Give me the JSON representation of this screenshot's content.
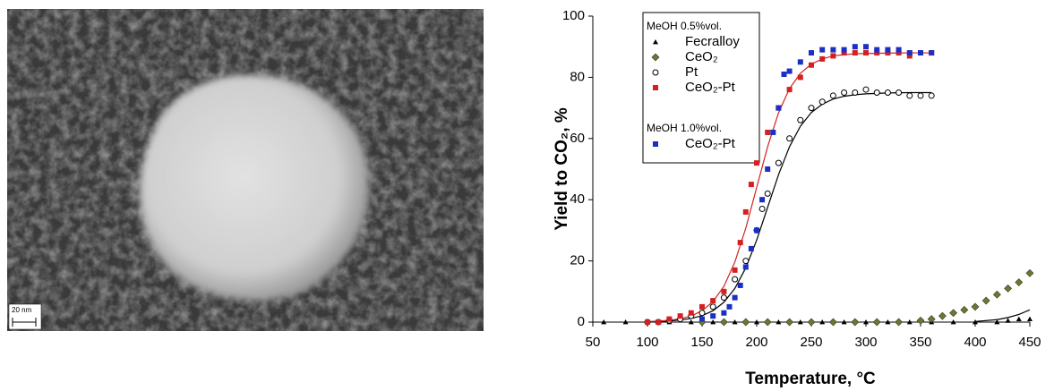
{
  "image": {
    "scale_bar": "20 nm"
  },
  "chart_data": {
    "type": "scatter",
    "xlabel": "Temperature, °C",
    "ylabel": "Yield to CO₂, %",
    "xlim": [
      50,
      450
    ],
    "ylim": [
      0,
      100
    ],
    "xticks": [
      50,
      100,
      150,
      200,
      250,
      300,
      350,
      400,
      450
    ],
    "yticks": [
      0,
      20,
      40,
      60,
      80,
      100
    ],
    "groups": [
      {
        "title": "MeOH 0.5%vol.",
        "series": [
          {
            "name": "Fecralloy",
            "color": "#000000",
            "marker": "triangle",
            "x": [
              60,
              80,
              100,
              120,
              140,
              160,
              180,
              200,
              220,
              240,
              260,
              280,
              300,
              320,
              340,
              360,
              380,
              400,
              420,
              430,
              440,
              450
            ],
            "values": [
              0,
              0,
              0,
              0,
              0,
              0,
              0,
              0,
              0,
              0,
              0,
              0,
              0,
              0,
              0,
              0,
              0,
              0,
              0,
              0.5,
              1,
              1
            ]
          },
          {
            "name": "CeO₂",
            "color": "#6b7a2a",
            "marker": "diamond",
            "x": [
              150,
              170,
              190,
              210,
              230,
              250,
              270,
              290,
              310,
              330,
              350,
              360,
              370,
              380,
              390,
              400,
              410,
              420,
              430,
              440,
              450
            ],
            "values": [
              0,
              0,
              0,
              0,
              0,
              0,
              0,
              0,
              0,
              0,
              0.5,
              1,
              2,
              3,
              4,
              5,
              7,
              9,
              11,
              13,
              16
            ]
          },
          {
            "name": "Pt",
            "color": "#000000",
            "marker": "circle",
            "x": [
              100,
              110,
              120,
              130,
              140,
              150,
              160,
              170,
              180,
              190,
              200,
              205,
              210,
              220,
              230,
              240,
              250,
              260,
              270,
              280,
              290,
              300,
              310,
              320,
              330,
              340,
              350,
              360
            ],
            "values": [
              0,
              0,
              0.5,
              1,
              2,
              3,
              5,
              8,
              14,
              20,
              30,
              37,
              42,
              52,
              60,
              66,
              70,
              72,
              74,
              75,
              75,
              76,
              75,
              75,
              75,
              74,
              74,
              74
            ]
          },
          {
            "name": "CeO₂-Pt",
            "color": "#d42020",
            "marker": "square",
            "x": [
              100,
              110,
              120,
              130,
              140,
              150,
              160,
              170,
              180,
              185,
              190,
              195,
              200,
              210,
              220,
              230,
              240,
              250,
              260,
              270,
              280,
              290,
              300,
              310,
              320,
              330,
              340,
              350,
              360
            ],
            "values": [
              0,
              0,
              1,
              2,
              3,
              5,
              7,
              10,
              17,
              26,
              36,
              45,
              52,
              62,
              70,
              76,
              80,
              84,
              86,
              87,
              88,
              88,
              88,
              88,
              88,
              88,
              87,
              88,
              88
            ]
          }
        ]
      },
      {
        "title": "MeOH 1.0%vol.",
        "series": [
          {
            "name": "CeO₂-Pt",
            "color": "#1c2fc4",
            "marker": "square",
            "x": [
              150,
              160,
              170,
              175,
              180,
              185,
              190,
              195,
              200,
              205,
              210,
              215,
              220,
              225,
              230,
              240,
              250,
              260,
              270,
              280,
              290,
              300,
              310,
              320,
              330,
              340,
              350,
              360
            ],
            "values": [
              1,
              2,
              3,
              5,
              8,
              12,
              18,
              24,
              30,
              40,
              50,
              62,
              70,
              81,
              82,
              85,
              88,
              89,
              89,
              89,
              90,
              90,
              89,
              89,
              89,
              88,
              88,
              88
            ]
          }
        ]
      }
    ],
    "fits": [
      {
        "color": "#000000",
        "x": [
          100,
          110,
          120,
          130,
          140,
          150,
          160,
          170,
          180,
          190,
          200,
          210,
          220,
          230,
          240,
          250,
          260,
          270,
          280,
          290,
          300,
          320,
          340,
          360
        ],
        "values": [
          0.12,
          0.21,
          0.37,
          0.68,
          1.2,
          2.1,
          3.7,
          6.5,
          11,
          17.7,
          26.8,
          37.5,
          48.2,
          57.3,
          64,
          68.5,
          71.2,
          72.9,
          73.8,
          74.3,
          74.6,
          74.9,
          75,
          75
        ]
      },
      {
        "color": "#d42020",
        "x": [
          100,
          110,
          120,
          130,
          140,
          150,
          160,
          170,
          180,
          190,
          200,
          210,
          220,
          230,
          240,
          250,
          260,
          270,
          280,
          290,
          300,
          320,
          340,
          360
        ],
        "values": [
          0.17,
          0.32,
          0.59,
          1.1,
          2,
          3.7,
          6.7,
          11.7,
          19.6,
          30.7,
          44,
          57.3,
          68.4,
          76.3,
          81.3,
          84.3,
          86,
          87,
          87.4,
          87.7,
          87.8,
          87.9,
          88,
          88
        ]
      },
      {
        "color": "#000000",
        "x": [
          400,
          420,
          430,
          440,
          450
        ],
        "values": [
          0.2,
          0.8,
          1.5,
          2.5,
          4
        ]
      }
    ]
  }
}
